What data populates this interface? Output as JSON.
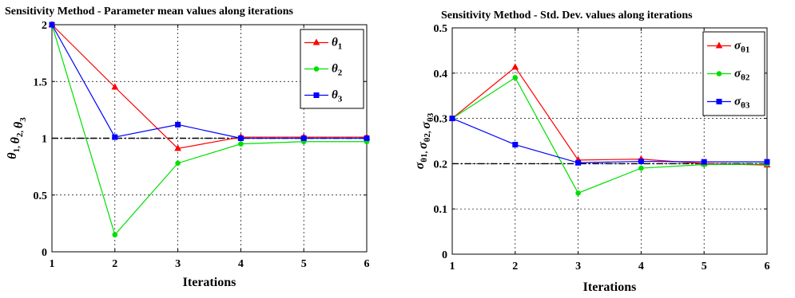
{
  "chart_data": [
    {
      "type": "line",
      "title": "Sensitivity Method - Parameter mean values along iterations",
      "xlabel": "Iterations",
      "ylabel": "θ1, θ2, θ3",
      "xlim": [
        1,
        6
      ],
      "ylim": [
        0,
        2
      ],
      "x_ticks": [
        "1",
        "2",
        "3",
        "4",
        "5",
        "6"
      ],
      "y_ticks": [
        "0",
        "0.5",
        "1",
        "1.5",
        "2"
      ],
      "grid": true,
      "legend_position": "top-right",
      "x": [
        1,
        2,
        3,
        4,
        5,
        6
      ],
      "reference_line": {
        "y": 1,
        "style": "dash-dot"
      },
      "series": [
        {
          "name": "θ1",
          "symbol": "θ",
          "sub": "1",
          "color": "#ff0000",
          "marker": "triangle",
          "values": [
            2.0,
            1.45,
            0.91,
            1.01,
            1.01,
            1.01
          ]
        },
        {
          "name": "θ2",
          "symbol": "θ",
          "sub": "2",
          "color": "#00e000",
          "marker": "circle",
          "values": [
            2.0,
            0.15,
            0.78,
            0.95,
            0.97,
            0.97
          ]
        },
        {
          "name": "θ3",
          "symbol": "θ",
          "sub": "3",
          "color": "#0000ff",
          "marker": "square",
          "values": [
            2.0,
            1.01,
            1.12,
            1.0,
            1.0,
            1.0
          ]
        }
      ]
    },
    {
      "type": "line",
      "title": "Sensitivity Method - Std. Dev. values along iterations",
      "xlabel": "Iterations",
      "ylabel": "σθ1, σθ2, σθ3",
      "xlim": [
        1,
        6
      ],
      "ylim": [
        0,
        0.5
      ],
      "x_ticks": [
        "1",
        "2",
        "3",
        "4",
        "5",
        "6"
      ],
      "y_ticks": [
        "0",
        "0.1",
        "0.2",
        "0.3",
        "0.4",
        "0.5"
      ],
      "grid": true,
      "legend_position": "top-right",
      "x": [
        1,
        2,
        3,
        4,
        5,
        6
      ],
      "reference_line": {
        "y": 0.2,
        "style": "dash-dot"
      },
      "series": [
        {
          "name": "σθ1",
          "symbol": "σ",
          "sub": "θ1",
          "color": "#ff0000",
          "marker": "triangle",
          "values": [
            0.3,
            0.413,
            0.208,
            0.21,
            0.2,
            0.197
          ]
        },
        {
          "name": "σθ2",
          "symbol": "σ",
          "sub": "θ2",
          "color": "#00e000",
          "marker": "circle",
          "values": [
            0.3,
            0.39,
            0.135,
            0.19,
            0.198,
            0.199
          ]
        },
        {
          "name": "σθ3",
          "symbol": "σ",
          "sub": "θ3",
          "color": "#0000ff",
          "marker": "square",
          "values": [
            0.3,
            0.242,
            0.202,
            0.205,
            0.204,
            0.204
          ]
        }
      ]
    }
  ]
}
